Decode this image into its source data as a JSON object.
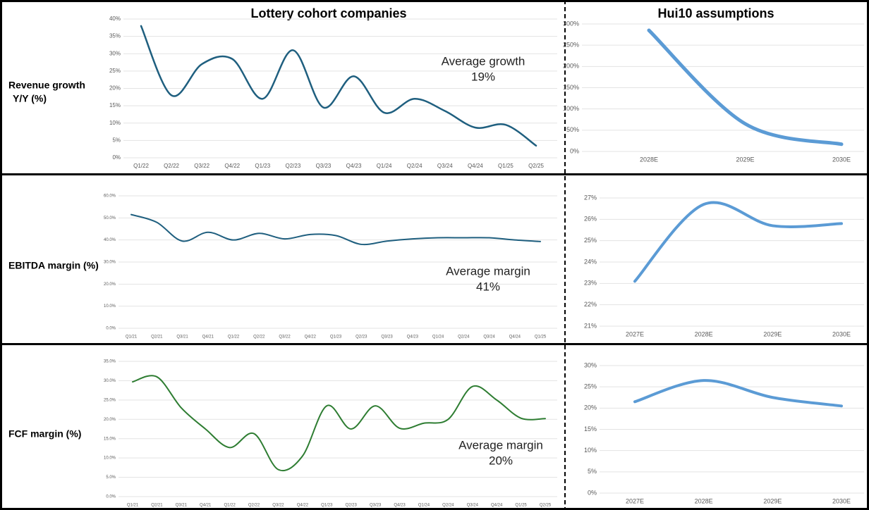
{
  "columns": [
    "Lottery cohort companies",
    "Hui10 assumptions"
  ],
  "chart_data": [
    {
      "type": "line",
      "ylabel": [
        "Revenue growth",
        "Y/Y (%)"
      ],
      "annotation": [
        "Average growth",
        "19%"
      ],
      "categories": [
        "Q1/22",
        "Q2/22",
        "Q3/22",
        "Q4/22",
        "Q1/23",
        "Q2/23",
        "Q3/23",
        "Q4/23",
        "Q1/24",
        "Q2/24",
        "Q3/24",
        "Q4/24",
        "Q1/25",
        "Q2/25"
      ],
      "series": [
        {
          "color": "#1f5f7f",
          "values": [
            38,
            18,
            27,
            28.5,
            17,
            31,
            14.5,
            23.5,
            13,
            17,
            13.5,
            8.7,
            9.5,
            3.5
          ]
        }
      ],
      "ylim": [
        0,
        40
      ],
      "grid": true,
      "yticks": [
        {
          "value": 0,
          "label": "0%"
        },
        {
          "value": 5,
          "label": "5%"
        },
        {
          "value": 10,
          "label": "10%"
        },
        {
          "value": 15,
          "label": "15%"
        },
        {
          "value": 20,
          "label": "20%"
        },
        {
          "value": 25,
          "label": "25%"
        },
        {
          "value": 30,
          "label": "30%"
        },
        {
          "value": 35,
          "label": "35%"
        },
        {
          "value": 40,
          "label": "40%"
        }
      ]
    },
    {
      "type": "line",
      "categories": [
        "2028E",
        "2029E",
        "2030E"
      ],
      "series": [
        {
          "color": "#5b9bd5",
          "values": [
            285,
            65,
            17
          ]
        }
      ],
      "ylim": [
        0,
        300
      ],
      "grid": true,
      "yticks": [
        {
          "value": 0,
          "label": "0%"
        },
        {
          "value": 50,
          "label": "50%"
        },
        {
          "value": 100,
          "label": "100%"
        },
        {
          "value": 150,
          "label": "150%"
        },
        {
          "value": 200,
          "label": "200%"
        },
        {
          "value": 250,
          "label": "250%"
        },
        {
          "value": 300,
          "label": "300%"
        }
      ]
    },
    {
      "type": "line",
      "ylabel": [
        "EBITDA margin (%)"
      ],
      "annotation": [
        "Average margin",
        "41%"
      ],
      "categories": [
        "Q1/21",
        "Q2/21",
        "Q3/21",
        "Q4/21",
        "Q1/22",
        "Q2/22",
        "Q3/22",
        "Q4/22",
        "Q1/23",
        "Q2/23",
        "Q3/23",
        "Q4/23",
        "Q1/24",
        "Q2/24",
        "Q3/24",
        "Q4/24",
        "Q1/25"
      ],
      "series": [
        {
          "color": "#1f5f7f",
          "values": [
            51.5,
            48,
            39.5,
            43.5,
            40,
            43,
            40.5,
            42.5,
            42,
            38,
            39.5,
            40.5,
            41,
            41,
            41,
            40,
            39.3
          ]
        }
      ],
      "ylim": [
        0,
        60
      ],
      "grid": true,
      "yticks": [
        {
          "value": 0,
          "label": "0.0%"
        },
        {
          "value": 10,
          "label": "10.0%"
        },
        {
          "value": 20,
          "label": "20.0%"
        },
        {
          "value": 30,
          "label": "30.0%"
        },
        {
          "value": 40,
          "label": "40.0%"
        },
        {
          "value": 50,
          "label": "50.0%"
        },
        {
          "value": 60,
          "label": "60.0%"
        }
      ]
    },
    {
      "type": "line",
      "categories": [
        "2027E",
        "2028E",
        "2029E",
        "2030E"
      ],
      "series": [
        {
          "color": "#5b9bd5",
          "values": [
            23.1,
            26.7,
            25.7,
            25.8
          ]
        }
      ],
      "ylim": [
        21,
        27
      ],
      "grid": true,
      "yticks": [
        {
          "value": 21,
          "label": "21%"
        },
        {
          "value": 22,
          "label": "22%"
        },
        {
          "value": 23,
          "label": "23%"
        },
        {
          "value": 24,
          "label": "24%"
        },
        {
          "value": 25,
          "label": "25%"
        },
        {
          "value": 26,
          "label": "26%"
        },
        {
          "value": 27,
          "label": "27%"
        }
      ]
    },
    {
      "type": "line",
      "ylabel": [
        "FCF margin  (%)"
      ],
      "annotation": [
        "Average margin",
        "20%"
      ],
      "categories": [
        "Q1/21",
        "Q2/21",
        "Q3/21",
        "Q4/21",
        "Q1/22",
        "Q2/22",
        "Q3/22",
        "Q4/22",
        "Q1/23",
        "Q2/23",
        "Q3/23",
        "Q4/23",
        "Q1/24",
        "Q2/24",
        "Q3/24",
        "Q4/24",
        "Q1/25",
        "Q2/25"
      ],
      "series": [
        {
          "color": "#2e7d32",
          "values": [
            29.7,
            31,
            23,
            17.5,
            12.7,
            16.3,
            7,
            10.5,
            23.5,
            17.5,
            23.5,
            17.7,
            19,
            20,
            28.5,
            25,
            20.3,
            20.2
          ]
        }
      ],
      "ylim": [
        0,
        35
      ],
      "grid": true,
      "yticks": [
        {
          "value": 0,
          "label": "0.0%"
        },
        {
          "value": 5,
          "label": "5.0%"
        },
        {
          "value": 10,
          "label": "10.0%"
        },
        {
          "value": 15,
          "label": "15.0%"
        },
        {
          "value": 20,
          "label": "20.0%"
        },
        {
          "value": 25,
          "label": "25.0%"
        },
        {
          "value": 30,
          "label": "30.0%"
        },
        {
          "value": 35,
          "label": "35.0%"
        }
      ]
    },
    {
      "type": "line",
      "categories": [
        "2027E",
        "2028E",
        "2029E",
        "2030E"
      ],
      "series": [
        {
          "color": "#5b9bd5",
          "values": [
            21.5,
            26.5,
            22.5,
            20.5
          ]
        }
      ],
      "ylim": [
        0,
        30
      ],
      "grid": true,
      "yticks": [
        {
          "value": 0,
          "label": "0%"
        },
        {
          "value": 5,
          "label": "5%"
        },
        {
          "value": 10,
          "label": "10%"
        },
        {
          "value": 15,
          "label": "15%"
        },
        {
          "value": 20,
          "label": "20%"
        },
        {
          "value": 25,
          "label": "25%"
        },
        {
          "value": 30,
          "label": "30%"
        }
      ]
    }
  ]
}
